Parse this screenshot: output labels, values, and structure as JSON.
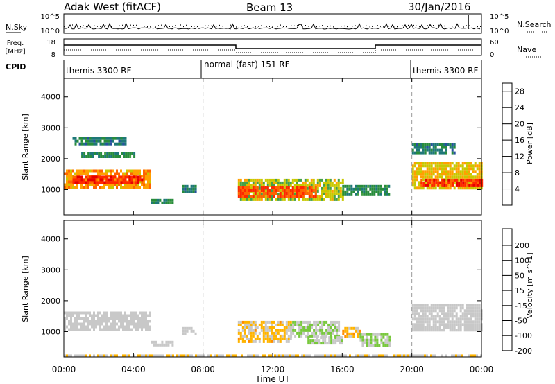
{
  "header": {
    "station": "Adak West (fitACF)",
    "beam": "Beam 13",
    "date": "30/Jan/2016"
  },
  "noise_panel": {
    "left_label": "N.Sky",
    "right_label": "N.Search",
    "y_tick_top": "10^5",
    "y_tick_bottom": "10^0",
    "right_tick_top": "10^5",
    "right_tick_bottom": "10^0"
  },
  "freq_panel": {
    "left_label_1": "Freq.",
    "left_label_2": "[MHz]",
    "right_label": "Nave",
    "y_tick_top": "18",
    "y_tick_bottom": "8",
    "right_tick_top": "60",
    "right_tick_bottom": "0"
  },
  "cpid_panel": {
    "label": "CPID",
    "segments": [
      "themis 3300 RF",
      "normal (fast) 151 RF",
      "themis 3300 RF"
    ]
  },
  "axes": {
    "xlabel": "Time UT",
    "x_ticks": [
      "00:00",
      "04:00",
      "08:00",
      "12:00",
      "16:00",
      "20:00",
      "00:00"
    ],
    "ylabel": "Slant Range [km]",
    "y_ticks": [
      "1000",
      "2000",
      "3000",
      "4000"
    ]
  },
  "colors": {
    "power": [
      "#0000ff",
      "#2850a0",
      "#1e7878",
      "#288c3c",
      "#46a046",
      "#c8c800",
      "#ffa000",
      "#ff6400",
      "#ff2800",
      "#e60000"
    ],
    "velocity": [
      "#e60000",
      "#ff5a00",
      "#ff8c00",
      "#ffb400",
      "#c8c8c8",
      "#c8c8c8",
      "#78c83c",
      "#3ca03c",
      "#1e5aa0",
      "#1414b4"
    ]
  },
  "chart_data": [
    {
      "type": "heatmap",
      "ylabel": "Slant Range [km]",
      "xlabel": "Time UT",
      "x_range_hours": [
        0,
        24
      ],
      "ylim": [
        180,
        4600
      ],
      "colorbar": {
        "label": "Power [dB]",
        "ticks": [
          "4",
          "8",
          "12",
          "16",
          "20",
          "24",
          "28"
        ],
        "range": [
          0,
          30
        ]
      },
      "features": [
        {
          "t": [
            0.0,
            5.0
          ],
          "r": [
            1050,
            1650
          ],
          "level": 20
        },
        {
          "t": [
            0.5,
            4.5
          ],
          "r": [
            1200,
            1450
          ],
          "level": 26
        },
        {
          "t": [
            0.5,
            3.5
          ],
          "r": [
            2500,
            2700
          ],
          "level": 8
        },
        {
          "t": [
            1.0,
            4.0
          ],
          "r": [
            2100,
            2200
          ],
          "level": 10
        },
        {
          "t": [
            5.0,
            6.2
          ],
          "r": [
            600,
            700
          ],
          "level": 10
        },
        {
          "t": [
            6.8,
            7.6
          ],
          "r": [
            900,
            1150
          ],
          "level": 8
        },
        {
          "t": [
            10.0,
            16.0
          ],
          "r": [
            650,
            1350
          ],
          "level": 16
        },
        {
          "t": [
            10.0,
            14.5
          ],
          "r": [
            800,
            1100
          ],
          "level": 24
        },
        {
          "t": [
            16.0,
            18.7
          ],
          "r": [
            800,
            1150
          ],
          "level": 10
        },
        {
          "t": [
            20.0,
            24.0
          ],
          "r": [
            1050,
            1900
          ],
          "level": 18
        },
        {
          "t": [
            20.5,
            24.0
          ],
          "r": [
            1100,
            1350
          ],
          "level": 26
        },
        {
          "t": [
            20.0,
            22.5
          ],
          "r": [
            2200,
            2500
          ],
          "level": 8
        }
      ]
    },
    {
      "type": "heatmap",
      "ylabel": "Slant Range [km]",
      "xlabel": "Time UT",
      "x_range_hours": [
        0,
        24
      ],
      "ylim": [
        180,
        4600
      ],
      "colorbar": {
        "label": "Velocity [m s^-1]",
        "ticks": [
          "200",
          "100",
          "50",
          "15",
          "-15",
          "-50",
          "-100",
          "-200"
        ],
        "range": [
          -250,
          250
        ]
      },
      "features": [
        {
          "t": [
            0.0,
            5.0
          ],
          "r": [
            1050,
            1650
          ],
          "level": 0
        },
        {
          "t": [
            5.0,
            6.2
          ],
          "r": [
            600,
            700
          ],
          "level": 0
        },
        {
          "t": [
            6.8,
            7.6
          ],
          "r": [
            900,
            1150
          ],
          "level": 0
        },
        {
          "t": [
            10.0,
            13.0
          ],
          "r": [
            700,
            1350
          ],
          "level": -60
        },
        {
          "t": [
            13.0,
            15.8
          ],
          "r": [
            900,
            1350
          ],
          "level": 40
        },
        {
          "t": [
            14.0,
            16.0
          ],
          "r": [
            650,
            850
          ],
          "level": 40
        },
        {
          "t": [
            16.0,
            17.0
          ],
          "r": [
            800,
            1150
          ],
          "level": -70
        },
        {
          "t": [
            17.0,
            18.7
          ],
          "r": [
            550,
            950
          ],
          "level": 50
        },
        {
          "t": [
            20.0,
            24.0
          ],
          "r": [
            1050,
            1900
          ],
          "level": 0
        },
        {
          "t": [
            0.0,
            24.0
          ],
          "r": [
            200,
            260
          ],
          "level": -40
        }
      ]
    }
  ]
}
